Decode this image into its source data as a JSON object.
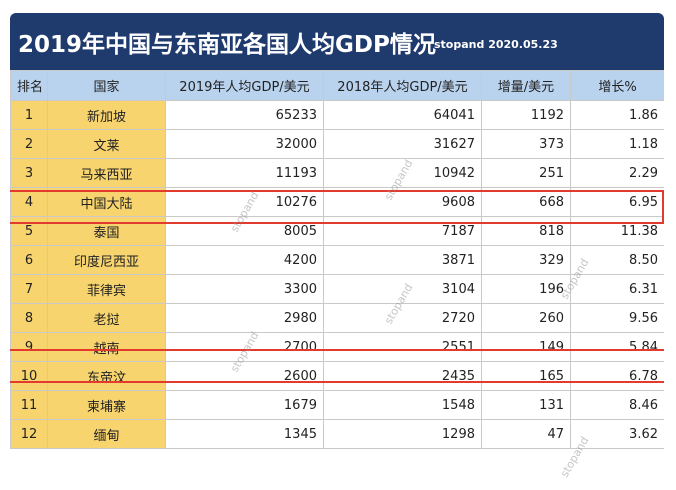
{
  "header": {
    "title": "2019年中国与东南亚各国人均GDP情况",
    "subtitle": "stopand 2020.05.23"
  },
  "table": {
    "columns": [
      "排名",
      "国家",
      "2019年人均GDP/美元",
      "2018年人均GDP/美元",
      "增量/美元",
      "增长%"
    ],
    "rows": [
      {
        "rank": "1",
        "country": "新加坡",
        "gdp2019": "65233",
        "gdp2018": "64041",
        "increase": "1192",
        "growth": "1.86"
      },
      {
        "rank": "2",
        "country": "文莱",
        "gdp2019": "32000",
        "gdp2018": "31627",
        "increase": "373",
        "growth": "1.18"
      },
      {
        "rank": "3",
        "country": "马来西亚",
        "gdp2019": "11193",
        "gdp2018": "10942",
        "increase": "251",
        "growth": "2.29"
      },
      {
        "rank": "4",
        "country": "中国大陆",
        "gdp2019": "10276",
        "gdp2018": "9608",
        "increase": "668",
        "growth": "6.95"
      },
      {
        "rank": "5",
        "country": "泰国",
        "gdp2019": "8005",
        "gdp2018": "7187",
        "increase": "818",
        "growth": "11.38"
      },
      {
        "rank": "6",
        "country": "印度尼西亚",
        "gdp2019": "4200",
        "gdp2018": "3871",
        "increase": "329",
        "growth": "8.50"
      },
      {
        "rank": "7",
        "country": "菲律宾",
        "gdp2019": "3300",
        "gdp2018": "3104",
        "increase": "196",
        "growth": "6.31"
      },
      {
        "rank": "8",
        "country": "老挝",
        "gdp2019": "2980",
        "gdp2018": "2720",
        "increase": "260",
        "growth": "9.56"
      },
      {
        "rank": "9",
        "country": "越南",
        "gdp2019": "2700",
        "gdp2018": "2551",
        "increase": "149",
        "growth": "5.84"
      },
      {
        "rank": "10",
        "country": "东帝汶",
        "gdp2019": "2600",
        "gdp2018": "2435",
        "increase": "165",
        "growth": "6.78"
      },
      {
        "rank": "11",
        "country": "柬埔寨",
        "gdp2019": "1679",
        "gdp2018": "1548",
        "increase": "131",
        "growth": "8.46"
      },
      {
        "rank": "12",
        "country": "缅甸",
        "gdp2019": "1345",
        "gdp2018": "1298",
        "increase": "47",
        "growth": "3.62"
      }
    ]
  },
  "highlighted_countries": [
    "中国大陆",
    "越南"
  ],
  "watermark": "stopand",
  "colors": {
    "banner": "#1f3a6d",
    "header_row": "#b9d3ee",
    "rank_column": "#f7d46d",
    "highlight_border": "#e23a2e"
  }
}
